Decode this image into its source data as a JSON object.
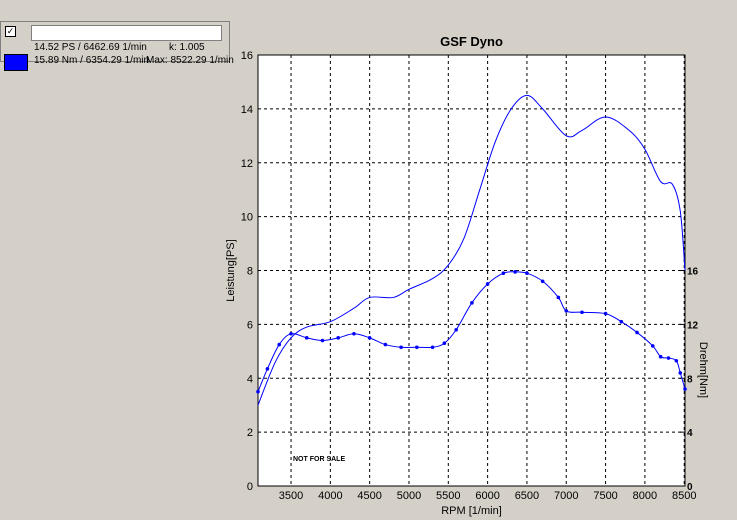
{
  "legend": {
    "checked": true,
    "check_glyph": "✓",
    "series_color": "#0000ff",
    "power_readout": "14.52 PS / 6462.69 1/min",
    "k_readout": "k: 1.005",
    "torque_readout": "15.89 Nm / 6354.29 1/min",
    "max_readout": "Max: 8522.29 1/min"
  },
  "chart_data": {
    "type": "line",
    "title": "GSF Dyno",
    "xlabel": "RPM [1/min]",
    "ylabel": "Leistung[PS]",
    "y2label": "Drehm[Nm]",
    "watermark": "NOT FOR SALE",
    "xlim": [
      3080,
      8510
    ],
    "ylim": [
      0,
      16
    ],
    "y2lim": [
      0,
      32
    ],
    "xticks": [
      3500,
      4000,
      4500,
      5000,
      5500,
      6000,
      6500,
      7000,
      7500,
      8000,
      8500
    ],
    "yticks": [
      0,
      2,
      4,
      6,
      8,
      10,
      12,
      14,
      16
    ],
    "y2ticks": [
      0,
      4,
      8,
      12,
      16
    ],
    "grid": true,
    "color": "#0000ff",
    "series": [
      {
        "axis": "left",
        "markers": false,
        "x": [
          3080,
          3300,
          3500,
          3700,
          4000,
          4300,
          4500,
          4800,
          5000,
          5300,
          5500,
          5700,
          5900,
          6100,
          6300,
          6500,
          6700,
          7000,
          7200,
          7500,
          7800,
          8000,
          8200,
          8350,
          8450,
          8510
        ],
        "values": [
          3.0,
          4.6,
          5.5,
          5.9,
          6.1,
          6.6,
          7.0,
          7.0,
          7.3,
          7.7,
          8.2,
          9.2,
          11.0,
          12.8,
          14.0,
          14.5,
          14.0,
          13.0,
          13.2,
          13.7,
          13.2,
          12.5,
          11.3,
          11.2,
          10.2,
          8.0
        ]
      },
      {
        "axis": "right",
        "markers": true,
        "x": [
          3080,
          3200,
          3350,
          3500,
          3700,
          3900,
          4100,
          4300,
          4500,
          4700,
          4900,
          5100,
          5300,
          5450,
          5600,
          5800,
          6000,
          6200,
          6350,
          6500,
          6700,
          6900,
          7000,
          7200,
          7500,
          7700,
          7900,
          8100,
          8200,
          8300,
          8400,
          8450,
          8510
        ],
        "values": [
          7.0,
          8.7,
          10.5,
          11.3,
          11.0,
          10.8,
          11.0,
          11.3,
          11.0,
          10.5,
          10.3,
          10.3,
          10.3,
          10.6,
          11.6,
          13.6,
          15.0,
          15.8,
          15.9,
          15.8,
          15.2,
          14.0,
          13.0,
          12.9,
          12.8,
          12.2,
          11.4,
          10.4,
          9.6,
          9.5,
          9.3,
          8.4,
          7.2
        ]
      }
    ]
  }
}
